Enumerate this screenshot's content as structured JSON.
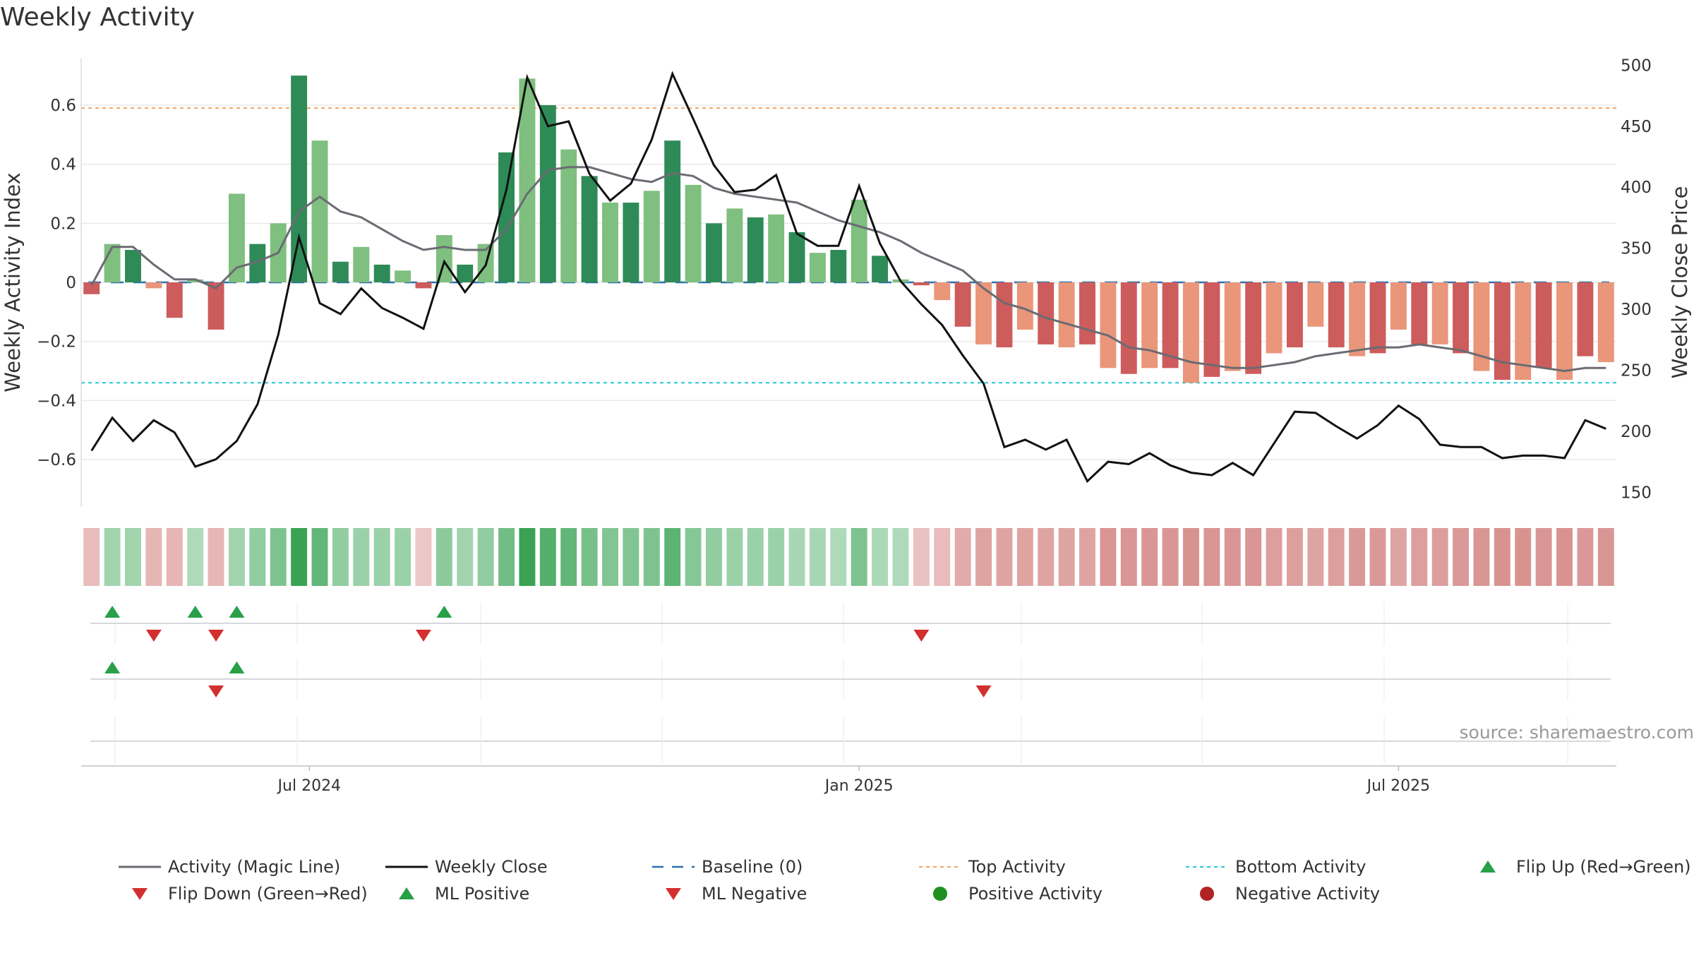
{
  "title": "Weekly Activity",
  "source": "source: sharemaestro.com",
  "colors": {
    "strong_positive": "#2e8b57",
    "weak_positive": "#7fbf7f",
    "strong_negative": "#cd5c5c",
    "weak_negative": "#e9967a",
    "magic_line": "#6b6b73",
    "close_line": "#111111",
    "baseline": "#2a6fb0",
    "top_line": "#f4a460",
    "bottom_line": "#22c7d6",
    "marker_up": "#27a048",
    "marker_down": "#d32f2f",
    "positive_dot": "#1f8f1f",
    "negative_dot": "#b22222"
  },
  "chart_data": {
    "type": "bar",
    "title": "Weekly Activity",
    "ylabel": "Weekly Activity Index",
    "y2label": "Weekly Close Price",
    "ylim": [
      -0.76,
      0.76
    ],
    "y2lim": [
      138,
      506
    ],
    "yticks": [
      {
        "v": 0.6,
        "label": "0.6"
      },
      {
        "v": 0.4,
        "label": "0.4"
      },
      {
        "v": 0.2,
        "label": "0.2"
      },
      {
        "v": 0,
        "label": "0"
      },
      {
        "v": -0.2,
        "label": "−0.2"
      },
      {
        "v": -0.4,
        "label": "−0.4"
      },
      {
        "v": -0.6,
        "label": "−0.6"
      }
    ],
    "y2ticks": [
      {
        "v": 500,
        "label": "500"
      },
      {
        "v": 450,
        "label": "450"
      },
      {
        "v": 400,
        "label": "400"
      },
      {
        "v": 350,
        "label": "350"
      },
      {
        "v": 300,
        "label": "300"
      },
      {
        "v": 250,
        "label": "250"
      },
      {
        "v": 200,
        "label": "200"
      },
      {
        "v": 150,
        "label": "150"
      }
    ],
    "xticks": [
      {
        "week": 10.5,
        "label": "Jul 2024"
      },
      {
        "week": 37,
        "label": "Jan 2025"
      },
      {
        "week": 63,
        "label": "Jul 2025"
      }
    ],
    "top_activity": 0.59,
    "bottom_activity": -0.34,
    "baseline": 0,
    "weeks": 74,
    "activity": [
      -0.04,
      0.13,
      0.11,
      -0.02,
      -0.12,
      0.01,
      -0.16,
      0.3,
      0.13,
      0.2,
      0.7,
      0.48,
      0.07,
      0.12,
      0.06,
      0.04,
      -0.02,
      0.16,
      0.06,
      0.13,
      0.44,
      0.69,
      0.6,
      0.45,
      0.36,
      0.27,
      0.27,
      0.31,
      0.48,
      0.33,
      0.2,
      0.25,
      0.22,
      0.23,
      0.17,
      0.1,
      0.11,
      0.28,
      0.09,
      0.01,
      -0.01,
      -0.06,
      -0.15,
      -0.21,
      -0.22,
      -0.16,
      -0.21,
      -0.22,
      -0.21,
      -0.29,
      -0.31,
      -0.29,
      -0.29,
      -0.34,
      -0.32,
      -0.3,
      -0.31,
      -0.24,
      -0.22,
      -0.15,
      -0.22,
      -0.25,
      -0.24,
      -0.16,
      -0.21,
      -0.21,
      -0.24,
      -0.3,
      -0.33,
      -0.33,
      -0.29,
      -0.33,
      -0.25,
      -0.27
    ],
    "magic_line": [
      -0.01,
      0.12,
      0.12,
      0.06,
      0.01,
      0.01,
      -0.02,
      0.05,
      0.07,
      0.1,
      0.24,
      0.29,
      0.24,
      0.22,
      0.18,
      0.14,
      0.11,
      0.12,
      0.11,
      0.11,
      0.18,
      0.3,
      0.38,
      0.39,
      0.39,
      0.37,
      0.35,
      0.34,
      0.37,
      0.36,
      0.32,
      0.3,
      0.29,
      0.28,
      0.27,
      0.24,
      0.21,
      0.19,
      0.17,
      0.14,
      0.1,
      0.07,
      0.04,
      -0.02,
      -0.07,
      -0.09,
      -0.12,
      -0.14,
      -0.16,
      -0.18,
      -0.22,
      -0.23,
      -0.25,
      -0.27,
      -0.28,
      -0.29,
      -0.29,
      -0.28,
      -0.27,
      -0.25,
      -0.24,
      -0.23,
      -0.22,
      -0.22,
      -0.21,
      -0.22,
      -0.23,
      -0.25,
      -0.27,
      -0.28,
      -0.29,
      -0.3,
      -0.29,
      -0.29
    ],
    "close": [
      184,
      211,
      192,
      209,
      199,
      171,
      177,
      192,
      222,
      279,
      359,
      305,
      296,
      317,
      301,
      293,
      284,
      339,
      314,
      336,
      398,
      490,
      450,
      454,
      411,
      389,
      403,
      439,
      493,
      456,
      418,
      396,
      398,
      410,
      362,
      352,
      352,
      401,
      354,
      323,
      304,
      287,
      262,
      239,
      187,
      193,
      185,
      193,
      159,
      175,
      173,
      182,
      172,
      166,
      164,
      174,
      164,
      190,
      216,
      215,
      204,
      194,
      205,
      221,
      210,
      189,
      187,
      187,
      178,
      180,
      180,
      178,
      209,
      202
    ],
    "heat_levels": [
      0.38,
      0.45,
      0.45,
      0.42,
      0.42,
      0.38,
      0.42,
      0.45,
      0.52,
      0.62,
      0.95,
      0.75,
      0.52,
      0.48,
      0.48,
      0.48,
      0.32,
      0.55,
      0.45,
      0.52,
      0.68,
      0.95,
      0.82,
      0.75,
      0.65,
      0.6,
      0.6,
      0.62,
      0.78,
      0.58,
      0.52,
      0.48,
      0.48,
      0.48,
      0.42,
      0.42,
      0.38,
      0.62,
      0.4,
      0.38,
      0.35,
      0.38,
      0.48,
      0.52,
      0.52,
      0.52,
      0.52,
      0.52,
      0.52,
      0.6,
      0.6,
      0.6,
      0.6,
      0.62,
      0.6,
      0.6,
      0.6,
      0.55,
      0.55,
      0.52,
      0.55,
      0.58,
      0.58,
      0.52,
      0.55,
      0.55,
      0.58,
      0.6,
      0.62,
      0.62,
      0.6,
      0.62,
      0.58,
      0.6
    ],
    "flip_events": {
      "up": [
        1,
        5,
        7,
        17
      ],
      "down": [
        3,
        6,
        16,
        40
      ]
    },
    "ml_events": {
      "positive": [
        1,
        7
      ],
      "negative": [
        6,
        43
      ]
    }
  },
  "legend": [
    {
      "key": "magic",
      "label": "Activity (Magic Line)"
    },
    {
      "key": "close",
      "label": "Weekly Close"
    },
    {
      "key": "baseline",
      "label": "Baseline (0)"
    },
    {
      "key": "top",
      "label": "Top Activity"
    },
    {
      "key": "bottom",
      "label": "Bottom Activity"
    },
    {
      "key": "flip_up",
      "label": "Flip Up (Red→Green)"
    },
    {
      "key": "flip_down",
      "label": "Flip Down (Green→Red)"
    },
    {
      "key": "ml_pos",
      "label": "ML Positive"
    },
    {
      "key": "ml_neg",
      "label": "ML Negative"
    },
    {
      "key": "pos_dot",
      "label": "Positive Activity"
    },
    {
      "key": "neg_dot",
      "label": "Negative Activity"
    }
  ]
}
